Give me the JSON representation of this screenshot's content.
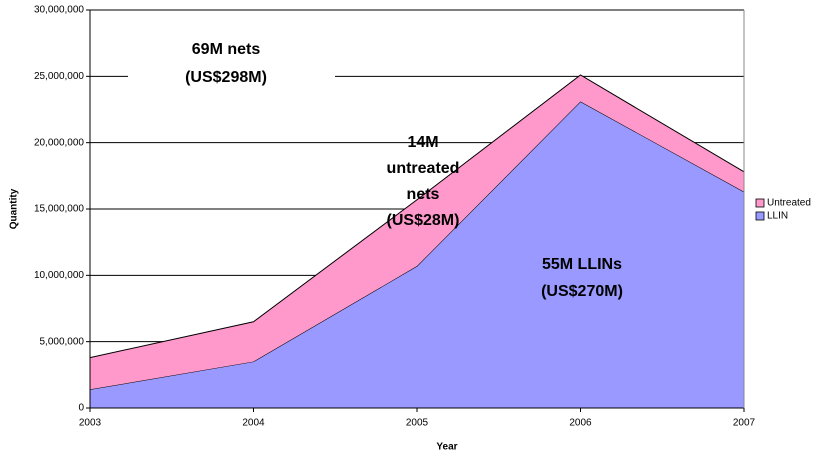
{
  "chart_data": {
    "type": "stacked_area",
    "x_label": "Year",
    "y_label": "Quantity",
    "categories": [
      "2003",
      "2004",
      "2005",
      "2006",
      "2007"
    ],
    "series": [
      {
        "name": "LLIN",
        "color": "#9999ff",
        "values": [
          1400000,
          3500000,
          10700000,
          23100000,
          16300000
        ]
      },
      {
        "name": "Untreated",
        "color": "#ff99cc",
        "values": [
          2400000,
          3000000,
          5000000,
          2000000,
          1500000
        ]
      }
    ],
    "ylim": [
      0,
      30000000
    ],
    "yticks": [
      0,
      {
        "value": 5000000,
        "label": "5,000,000"
      },
      {
        "value": 10000000,
        "label": "10,000,000"
      },
      {
        "value": 15000000,
        "label": "15,000,000"
      },
      {
        "value": 20000000,
        "label": "20,000,000"
      },
      {
        "value": 25000000,
        "label": "25,000,000"
      },
      {
        "value": 30000000,
        "label": "30,000,000"
      }
    ],
    "grid": true,
    "legend": "right",
    "annotations": [
      [
        "69M nets",
        "(US$298M)"
      ],
      [
        "14M",
        "untreated",
        "nets",
        "(US$28M)"
      ],
      [
        "55M LLINs",
        "(US$270M)"
      ]
    ]
  }
}
